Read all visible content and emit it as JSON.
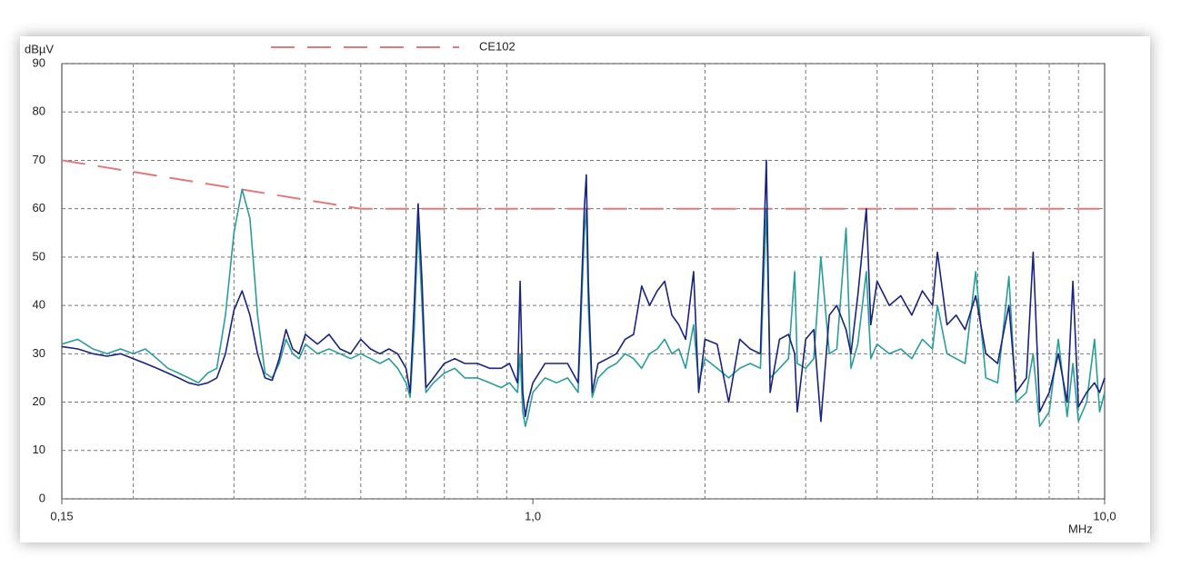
{
  "chart_data": {
    "type": "line",
    "ylabel": "dBµV",
    "xlabel": "MHz",
    "xscale": "log",
    "grid": true,
    "xlim": [
      0.15,
      10
    ],
    "ylim": [
      0,
      90
    ],
    "yticks": [
      0,
      10,
      20,
      30,
      40,
      50,
      60,
      70,
      80,
      90
    ],
    "xticks": [
      {
        "value": 0.15,
        "label": "0,15"
      },
      {
        "value": 1,
        "label": "1,0"
      },
      {
        "value": 10,
        "label": "10,0"
      }
    ],
    "xgrid": [
      0.2,
      0.3,
      0.4,
      0.5,
      0.6,
      0.7,
      0.8,
      0.9,
      2,
      3,
      4,
      5,
      6,
      7,
      8,
      9
    ],
    "series": [
      {
        "name": "CE102",
        "color": "#e07a7a",
        "dashed": true,
        "x": [
          0.15,
          0.5,
          10
        ],
        "values": [
          70,
          60,
          60
        ]
      },
      {
        "color": "#2a9d9b",
        "x": [
          0.15,
          0.16,
          0.17,
          0.18,
          0.19,
          0.2,
          0.21,
          0.22,
          0.23,
          0.24,
          0.25,
          0.26,
          0.27,
          0.28,
          0.29,
          0.3,
          0.31,
          0.32,
          0.33,
          0.34,
          0.35,
          0.36,
          0.37,
          0.38,
          0.39,
          0.4,
          0.42,
          0.44,
          0.46,
          0.48,
          0.5,
          0.52,
          0.54,
          0.56,
          0.58,
          0.6,
          0.61,
          0.62,
          0.63,
          0.64,
          0.65,
          0.67,
          0.7,
          0.73,
          0.76,
          0.8,
          0.84,
          0.88,
          0.91,
          0.94,
          0.95,
          0.96,
          0.97,
          0.98,
          1.0,
          1.05,
          1.1,
          1.15,
          1.2,
          1.23,
          1.24,
          1.25,
          1.27,
          1.3,
          1.35,
          1.4,
          1.45,
          1.5,
          1.55,
          1.6,
          1.65,
          1.7,
          1.75,
          1.8,
          1.85,
          1.91,
          1.95,
          2.0,
          2.1,
          2.2,
          2.3,
          2.4,
          2.5,
          2.56,
          2.6,
          2.7,
          2.8,
          2.87,
          2.9,
          3.0,
          3.1,
          3.19,
          3.3,
          3.4,
          3.53,
          3.6,
          3.7,
          3.83,
          3.9,
          4.0,
          4.2,
          4.4,
          4.6,
          4.8,
          5.0,
          5.1,
          5.3,
          5.5,
          5.7,
          5.95,
          6.2,
          6.5,
          6.8,
          7.0,
          7.3,
          7.5,
          7.7,
          8.0,
          8.3,
          8.6,
          8.8,
          9.0,
          9.3,
          9.6,
          9.8,
          10.0
        ],
        "values": [
          32,
          33,
          31,
          30,
          31,
          30,
          31,
          29,
          27,
          26,
          25,
          24,
          26,
          27,
          38,
          55,
          64,
          58,
          38,
          26,
          25,
          28,
          33,
          30,
          29,
          32,
          30,
          31,
          30,
          29,
          30,
          29,
          28,
          29,
          27,
          24,
          21,
          35,
          57,
          40,
          22,
          24,
          26,
          27,
          25,
          25,
          24,
          23,
          24,
          22,
          30,
          18,
          15,
          17,
          22,
          25,
          24,
          25,
          22,
          55,
          60,
          40,
          21,
          25,
          27,
          28,
          30,
          29,
          27,
          30,
          31,
          33,
          30,
          31,
          27,
          36,
          24,
          29,
          27,
          25,
          27,
          28,
          27,
          60,
          25,
          27,
          29,
          47,
          28,
          27,
          29,
          50,
          30,
          31,
          56,
          27,
          32,
          47,
          29,
          32,
          30,
          31,
          29,
          33,
          31,
          40,
          30,
          29,
          28,
          47,
          25,
          24,
          46,
          20,
          22,
          30,
          15,
          18,
          33,
          17,
          28,
          16,
          20,
          33,
          18,
          22
        ]
      },
      {
        "color": "#1a237e",
        "x": [
          0.15,
          0.16,
          0.17,
          0.18,
          0.19,
          0.2,
          0.21,
          0.22,
          0.23,
          0.24,
          0.25,
          0.26,
          0.27,
          0.28,
          0.29,
          0.3,
          0.31,
          0.32,
          0.33,
          0.34,
          0.35,
          0.36,
          0.37,
          0.38,
          0.39,
          0.4,
          0.42,
          0.44,
          0.46,
          0.48,
          0.5,
          0.52,
          0.54,
          0.56,
          0.58,
          0.6,
          0.61,
          0.62,
          0.63,
          0.64,
          0.65,
          0.67,
          0.7,
          0.73,
          0.76,
          0.8,
          0.84,
          0.88,
          0.91,
          0.94,
          0.95,
          0.96,
          0.97,
          0.98,
          1.0,
          1.05,
          1.1,
          1.15,
          1.2,
          1.23,
          1.24,
          1.25,
          1.27,
          1.3,
          1.35,
          1.4,
          1.45,
          1.5,
          1.55,
          1.6,
          1.65,
          1.7,
          1.75,
          1.8,
          1.85,
          1.91,
          1.95,
          2.0,
          2.1,
          2.2,
          2.3,
          2.4,
          2.5,
          2.56,
          2.6,
          2.7,
          2.8,
          2.87,
          2.9,
          3.0,
          3.1,
          3.19,
          3.3,
          3.4,
          3.53,
          3.6,
          3.7,
          3.83,
          3.9,
          4.0,
          4.2,
          4.4,
          4.6,
          4.8,
          5.0,
          5.1,
          5.3,
          5.5,
          5.7,
          5.95,
          6.2,
          6.5,
          6.8,
          7.0,
          7.3,
          7.5,
          7.7,
          8.0,
          8.3,
          8.6,
          8.8,
          9.0,
          9.3,
          9.6,
          9.8,
          10.0
        ],
        "values": [
          31.5,
          31,
          30,
          29.5,
          30,
          29,
          28,
          27,
          26,
          25,
          24,
          23.5,
          24,
          25,
          30,
          39,
          43,
          38,
          30,
          25,
          24.5,
          29,
          35,
          31,
          30,
          34,
          32,
          34,
          31,
          30,
          33,
          31,
          30,
          31,
          30,
          27,
          22,
          40,
          61,
          45,
          23,
          25,
          28,
          29,
          28,
          28,
          27,
          27,
          28,
          24,
          45,
          22,
          17,
          20,
          24,
          28,
          28,
          28,
          24,
          60,
          67,
          45,
          22,
          28,
          29,
          30,
          33,
          34,
          44,
          40,
          43,
          45,
          38,
          36,
          33,
          47,
          22,
          33,
          32,
          20,
          33,
          31,
          30,
          70,
          22,
          33,
          34,
          30,
          18,
          33,
          35,
          16,
          38,
          40,
          35,
          30,
          42,
          60,
          36,
          45,
          40,
          42,
          38,
          43,
          40,
          51,
          36,
          38,
          35,
          42,
          30,
          28,
          40,
          22,
          25,
          51,
          18,
          22,
          30,
          20,
          45,
          19,
          22,
          24,
          22,
          25
        ]
      }
    ]
  }
}
